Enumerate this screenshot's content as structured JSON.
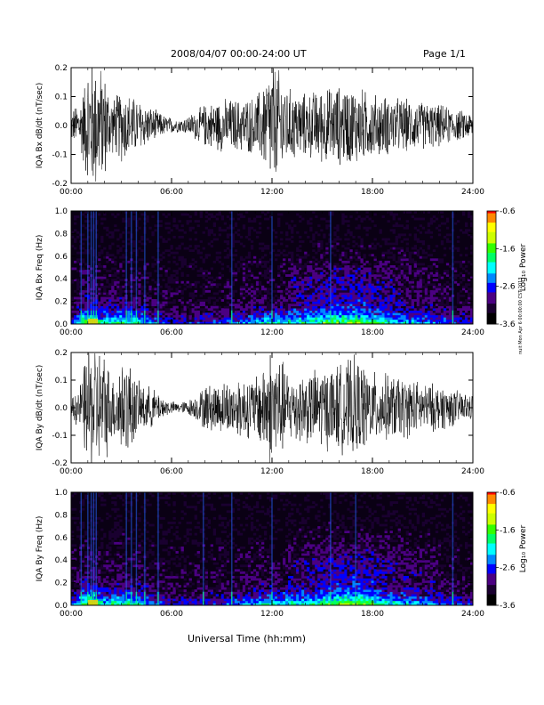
{
  "header": {
    "title": "2008/04/07  00:00-24:00 UT",
    "page": "Page 1/1"
  },
  "footer": {
    "xlabel": "Universal Time (hh:mm)",
    "credit": "nuit Mon Apr 6 00:00:00 CST 2013"
  },
  "colorbar": {
    "label": "Log₁₀ Power",
    "ticks": [
      "-0.6",
      "-1.6",
      "-2.6",
      "-3.6"
    ],
    "tick_values": [
      -0.6,
      -1.6,
      -2.6,
      -3.6
    ],
    "colors": [
      "#000000",
      "#1a0030",
      "#4b0082",
      "#0000ff",
      "#0088ff",
      "#00ffff",
      "#00ff66",
      "#33ff00",
      "#ccff00",
      "#ffff00",
      "#ff8800",
      "#ff0000"
    ]
  },
  "chart_data": [
    {
      "type": "line",
      "ylabel": "IQA Bx dB/dt (nT/sec)",
      "x_ticks": [
        "00:00",
        "06:00",
        "12:00",
        "18:00",
        "24:00"
      ],
      "y_ticks": [
        "-0.2",
        "-0.1",
        "0.0",
        "0.1",
        "0.2"
      ],
      "ylim": [
        -0.2,
        0.2
      ],
      "xlim_hours": [
        0,
        24
      ],
      "series": [
        {
          "color": "#000000",
          "envelope": [
            [
              0,
              0.06
            ],
            [
              0.5,
              0.09
            ],
            [
              0.8,
              0.16
            ],
            [
              1.0,
              0.25
            ],
            [
              1.5,
              0.25
            ],
            [
              2.0,
              0.2
            ],
            [
              2.5,
              0.1
            ],
            [
              3.0,
              0.14
            ],
            [
              3.5,
              0.12
            ],
            [
              4.0,
              0.1
            ],
            [
              4.5,
              0.08
            ],
            [
              5.0,
              0.06
            ],
            [
              5.5,
              0.04
            ],
            [
              6.0,
              0.03
            ],
            [
              6.5,
              0.025
            ],
            [
              7.0,
              0.035
            ],
            [
              7.5,
              0.06
            ],
            [
              8.0,
              0.08
            ],
            [
              9.0,
              0.1
            ],
            [
              10.0,
              0.1
            ],
            [
              11.0,
              0.11
            ],
            [
              11.5,
              0.16
            ],
            [
              12.0,
              0.25
            ],
            [
              12.5,
              0.2
            ],
            [
              13.0,
              0.14
            ],
            [
              14.0,
              0.12
            ],
            [
              15.0,
              0.14
            ],
            [
              16.0,
              0.15
            ],
            [
              17.0,
              0.15
            ],
            [
              18.0,
              0.12
            ],
            [
              19.0,
              0.11
            ],
            [
              20.0,
              0.1
            ],
            [
              21.0,
              0.09
            ],
            [
              22.0,
              0.08
            ],
            [
              23.0,
              0.06
            ],
            [
              24.0,
              0.05
            ]
          ]
        }
      ]
    },
    {
      "type": "heatmap",
      "ylabel": "IQA Bx Freq (Hz)",
      "x_ticks": [
        "00:00",
        "06:00",
        "12:00",
        "18:00",
        "24:00"
      ],
      "y_ticks": [
        "0.0",
        "0.2",
        "0.4",
        "0.6",
        "0.8",
        "1.0"
      ],
      "ylim": [
        0,
        1.0
      ],
      "xlim_hours": [
        0,
        24
      ],
      "zlim": [
        -3.6,
        -0.6
      ],
      "bright_lines_hours": [
        0.6,
        1.0,
        1.2,
        1.35,
        1.5,
        3.3,
        3.6,
        3.9,
        4.4,
        5.2,
        9.6,
        12.0,
        15.5,
        22.8
      ],
      "activity": [
        [
          0,
          0.3
        ],
        [
          1,
          0.9
        ],
        [
          2,
          0.6
        ],
        [
          3,
          0.7
        ],
        [
          4,
          0.6
        ],
        [
          5,
          0.4
        ],
        [
          6,
          0.25
        ],
        [
          8,
          0.3
        ],
        [
          10,
          0.4
        ],
        [
          12,
          0.6
        ],
        [
          14,
          0.6
        ],
        [
          15,
          0.7
        ],
        [
          16,
          0.8
        ],
        [
          17,
          0.8
        ],
        [
          18,
          0.7
        ],
        [
          19,
          0.6
        ],
        [
          20,
          0.5
        ],
        [
          22,
          0.4
        ],
        [
          24,
          0.3
        ]
      ]
    },
    {
      "type": "line",
      "ylabel": "IQA By dB/dt (nT/sec)",
      "x_ticks": [
        "00:00",
        "06:00",
        "12:00",
        "18:00",
        "24:00"
      ],
      "y_ticks": [
        "-0.2",
        "-0.1",
        "0.0",
        "0.1",
        "0.2"
      ],
      "ylim": [
        -0.2,
        0.2
      ],
      "xlim_hours": [
        0,
        24
      ],
      "series": [
        {
          "color": "#000000",
          "envelope": [
            [
              0,
              0.05
            ],
            [
              0.5,
              0.08
            ],
            [
              0.8,
              0.18
            ],
            [
              1.0,
              0.25
            ],
            [
              1.5,
              0.25
            ],
            [
              2.0,
              0.22
            ],
            [
              2.5,
              0.12
            ],
            [
              3.0,
              0.2
            ],
            [
              3.5,
              0.18
            ],
            [
              4.0,
              0.1
            ],
            [
              4.5,
              0.09
            ],
            [
              5.0,
              0.07
            ],
            [
              5.5,
              0.04
            ],
            [
              6.0,
              0.025
            ],
            [
              6.5,
              0.02
            ],
            [
              7.0,
              0.03
            ],
            [
              7.5,
              0.05
            ],
            [
              8.0,
              0.09
            ],
            [
              9.0,
              0.1
            ],
            [
              10.0,
              0.12
            ],
            [
              11.0,
              0.12
            ],
            [
              11.5,
              0.18
            ],
            [
              12.0,
              0.25
            ],
            [
              12.5,
              0.2
            ],
            [
              13.0,
              0.14
            ],
            [
              14.0,
              0.14
            ],
            [
              15.0,
              0.16
            ],
            [
              16.0,
              0.17
            ],
            [
              17.0,
              0.2
            ],
            [
              18.0,
              0.14
            ],
            [
              19.0,
              0.13
            ],
            [
              20.0,
              0.12
            ],
            [
              21.0,
              0.1
            ],
            [
              22.0,
              0.09
            ],
            [
              23.0,
              0.07
            ],
            [
              24.0,
              0.05
            ]
          ]
        }
      ]
    },
    {
      "type": "heatmap",
      "ylabel": "IQA By Freq (Hz)",
      "x_ticks": [
        "00:00",
        "06:00",
        "12:00",
        "18:00",
        "24:00"
      ],
      "y_ticks": [
        "0.0",
        "0.2",
        "0.4",
        "0.6",
        "0.8",
        "1.0"
      ],
      "ylim": [
        0,
        1.0
      ],
      "xlim_hours": [
        0,
        24
      ],
      "zlim": [
        -3.6,
        -0.6
      ],
      "bright_lines_hours": [
        0.6,
        1.0,
        1.2,
        1.35,
        1.5,
        3.3,
        3.6,
        3.9,
        4.4,
        5.2,
        7.9,
        9.6,
        12.0,
        15.5,
        17.0,
        22.8
      ],
      "activity": [
        [
          0,
          0.3
        ],
        [
          1,
          0.9
        ],
        [
          2,
          0.6
        ],
        [
          3,
          0.7
        ],
        [
          4,
          0.6
        ],
        [
          5,
          0.4
        ],
        [
          6,
          0.25
        ],
        [
          8,
          0.3
        ],
        [
          10,
          0.4
        ],
        [
          12,
          0.6
        ],
        [
          14,
          0.6
        ],
        [
          15,
          0.7
        ],
        [
          16,
          0.8
        ],
        [
          17,
          0.85
        ],
        [
          18,
          0.75
        ],
        [
          19,
          0.6
        ],
        [
          20,
          0.5
        ],
        [
          22,
          0.4
        ],
        [
          24,
          0.3
        ]
      ]
    }
  ]
}
